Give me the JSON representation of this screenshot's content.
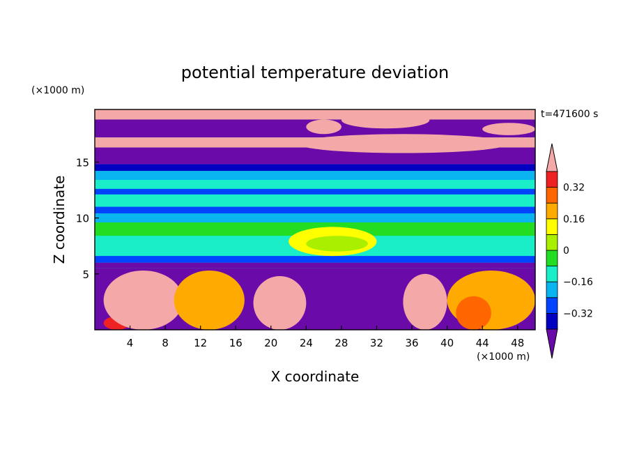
{
  "chart_data": {
    "type": "heatmap",
    "title": "potential temperature deviation",
    "xlabel": "X coordinate",
    "ylabel": "Z coordinate",
    "x_unit": "(×1000 m)",
    "y_unit": "(×1000 m)",
    "time_label": "t=471600 s",
    "xlim": [
      0,
      50
    ],
    "ylim": [
      0,
      19.7
    ],
    "x_ticks": [
      4,
      8,
      12,
      16,
      20,
      24,
      28,
      32,
      36,
      40,
      44,
      48
    ],
    "y_ticks": [
      5,
      10,
      15
    ],
    "colorbar": {
      "levels": [
        -0.4,
        -0.32,
        -0.24,
        -0.16,
        -0.08,
        0,
        0.08,
        0.16,
        0.24,
        0.32,
        0.4
      ],
      "tick_labels": [
        "0.32",
        "0.16",
        "0",
        "−0.16",
        "−0.32"
      ],
      "tick_values": [
        0.32,
        0.16,
        0,
        -0.16,
        -0.32
      ],
      "colors": [
        "#6a0aa8",
        "#0000c0",
        "#0044ff",
        "#0ab4f0",
        "#19eec8",
        "#22dd22",
        "#aaee00",
        "#ffff00",
        "#ffaa00",
        "#ff6600",
        "#ee2222",
        "#f5a8a8"
      ],
      "extend": "both"
    }
  }
}
